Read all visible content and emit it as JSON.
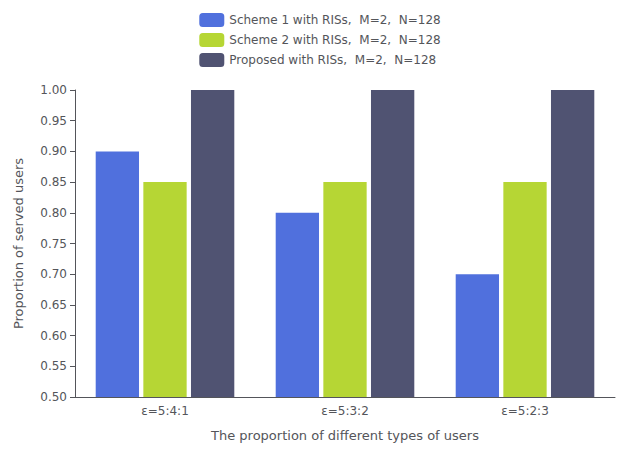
{
  "chart_data": {
    "type": "bar",
    "xlabel": "The proportion of different types of users",
    "ylabel": "Proportion of served users",
    "categories": [
      "ε=5:4:1",
      "ε=5:3:2",
      "ε=5:2:3"
    ],
    "series": [
      {
        "name": "Scheme 1 with RISs,  M=2,  N=128",
        "values": [
          0.9,
          0.8,
          0.7
        ]
      },
      {
        "name": "Scheme 2 with RISs,  M=2,  N=128",
        "values": [
          0.85,
          0.85,
          0.85
        ]
      },
      {
        "name": "Proposed with RISs,  M=2,  N=128",
        "values": [
          1.0,
          1.0,
          1.0
        ]
      }
    ],
    "ylim": [
      0.5,
      1.0
    ],
    "yticks": [
      {
        "value": 0.5,
        "label": "0.50"
      },
      0.55,
      {
        "value": 0.6,
        "label": "0.60"
      },
      0.65,
      {
        "value": 0.7,
        "label": "0.70"
      },
      0.75,
      {
        "value": 0.8,
        "label": "0.80"
      },
      0.85,
      {
        "value": 0.9,
        "label": "0.90"
      },
      0.95,
      {
        "value": 1.0,
        "label": "1.00"
      }
    ],
    "grid": false,
    "legend": "top"
  }
}
